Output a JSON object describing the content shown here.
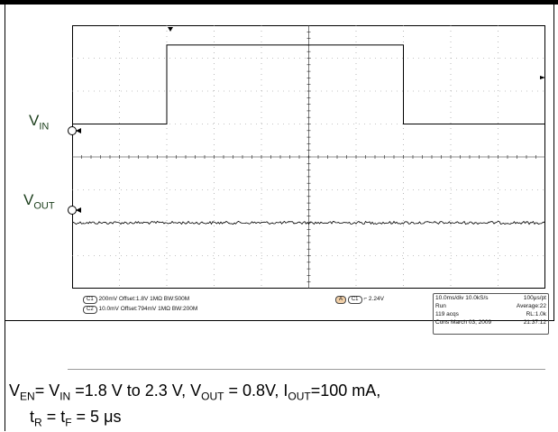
{
  "labels": {
    "vin_main": "V",
    "vin_sub": "IN",
    "vout_main": "V",
    "vout_sub": "OUT"
  },
  "channel_info": {
    "c1_badge": "C1",
    "c1": "200mV  Offset:1.8V    1MΩ  BW:500M",
    "c2_badge": "C2",
    "c2": "10.0mV  Offset:794mV   1MΩ  BW:200M"
  },
  "trigger": {
    "a_badge": "A",
    "c_badge": "C1",
    "text": "2.24V"
  },
  "acq": {
    "line1_left": "10.0ms/div 10.0kS/s",
    "line1_right": "100μs/pt",
    "line2_left": "Run",
    "line2_right": "Average:22",
    "line3_left": "119 acqs",
    "line3_right": "RL:1.0k",
    "line4_left": "Cons  March 03, 2009",
    "line4_right": "21:37:12"
  },
  "caption": {
    "line1": [
      {
        "t": "V"
      },
      {
        "s": "EN"
      },
      {
        "t": "= V"
      },
      {
        "s": "IN"
      },
      {
        "t": " =1.8 V to 2.3 V, V"
      },
      {
        "s": "OUT"
      },
      {
        "t": " = 0.8V, I"
      },
      {
        "s": "OUT"
      },
      {
        "t": "=100 mA,"
      }
    ],
    "line2": [
      {
        "t": "t"
      },
      {
        "s": "R"
      },
      {
        "t": " = t"
      },
      {
        "s": "F"
      },
      {
        "t": " = 5 μs"
      }
    ]
  },
  "chart_data": {
    "type": "line",
    "time_per_div": "10.0ms/div",
    "x_divisions": 10,
    "y_divisions": 8,
    "grid": true,
    "series": [
      {
        "name": "V_IN",
        "x_div": [
          0,
          2.0,
          2.0,
          7.0,
          7.0,
          10
        ],
        "level_div": [
          0,
          0,
          2.4,
          2.4,
          0,
          0
        ],
        "baseline_div": 5.0
      },
      {
        "name": "V_OUT",
        "x_div": [
          0,
          10
        ],
        "level_div": [
          0,
          0
        ],
        "baseline_div": 2.0
      }
    ]
  }
}
